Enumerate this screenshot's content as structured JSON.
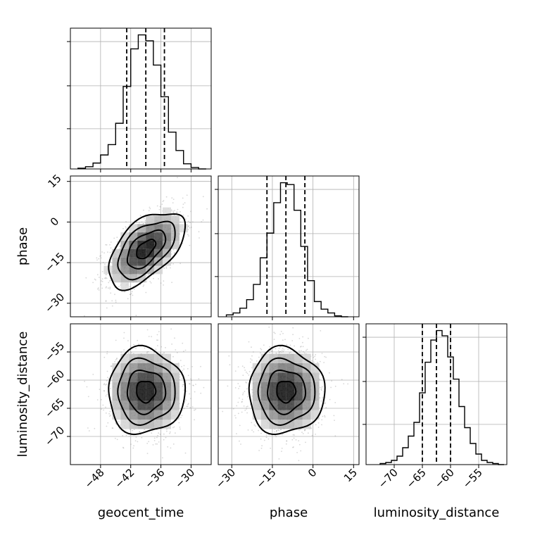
{
  "chart_data": {
    "type": "corner",
    "parameters": [
      "geocent_time",
      "phase",
      "luminosity_distance"
    ],
    "grid": true,
    "ranges": {
      "geocent_time": [
        -54,
        -26
      ],
      "phase": [
        -35,
        17
      ],
      "luminosity_distance": [
        -75,
        -50
      ]
    },
    "ticks": {
      "geocent_time": [
        "−48",
        "−42",
        "−36",
        "−30"
      ],
      "phase": [
        "−30",
        "−15",
        "0",
        "15"
      ],
      "luminosity_distance": [
        "−70",
        "−65",
        "−60",
        "−55"
      ]
    },
    "tick_values": {
      "geocent_time": [
        -48,
        -42,
        -36,
        -30
      ],
      "phase": [
        -30,
        -15,
        0,
        15
      ],
      "luminosity_distance": [
        -70,
        -65,
        -60,
        -55
      ]
    },
    "quantile_lines": {
      "geocent_time": [
        -42.8,
        -39.0,
        -35.3
      ],
      "phase": [
        -17.0,
        -10.0,
        -3.0
      ],
      "luminosity_distance": [
        -65.0,
        -62.5,
        -60.0
      ]
    },
    "histograms": {
      "geocent_time": {
        "edges": [
          -52.5,
          -51,
          -49.5,
          -48,
          -46.5,
          -45,
          -43.5,
          -42,
          -40.5,
          -39,
          -37.5,
          -36,
          -34.5,
          -33,
          -31.5,
          -30,
          -28.5,
          -27
        ],
        "counts": [
          1,
          3,
          8,
          19,
          33,
          62,
          112,
          163,
          182,
          174,
          141,
          98,
          50,
          25,
          7,
          2,
          0
        ]
      },
      "phase": {
        "edges": [
          -32,
          -29.5,
          -27,
          -24.5,
          -22,
          -19.5,
          -17,
          -14.5,
          -12,
          -9.5,
          -7,
          -4.5,
          -2,
          0.5,
          3,
          5.5,
          8,
          10.5,
          13
        ],
        "counts": [
          2,
          4,
          9,
          18,
          34,
          62,
          88,
          120,
          141,
          139,
          112,
          74,
          38,
          16,
          8,
          4,
          1,
          0
        ]
      },
      "luminosity_distance": {
        "edges": [
          -72.5,
          -71.5,
          -70.5,
          -69.5,
          -68.5,
          -67.5,
          -66.5,
          -65.5,
          -64.5,
          -63.5,
          -62.5,
          -61.5,
          -60.5,
          -59.5,
          -58.5,
          -57.5,
          -56.5,
          -55.5,
          -54.5,
          -53.5,
          -52.5,
          -51.5,
          -50.5
        ],
        "counts": [
          1,
          2,
          4,
          8,
          16,
          27,
          40,
          68,
          97,
          118,
          127,
          122,
          102,
          81,
          55,
          35,
          20,
          10,
          4,
          2,
          1,
          0
        ]
      }
    },
    "pairs": [
      {
        "x": "geocent_time",
        "y": "phase",
        "mean": [
          -39.0,
          -10.0
        ],
        "sd": [
          3.8,
          7.0
        ],
        "corr": 0.55,
        "contour_levels_sigma": [
          0.5,
          1.0,
          1.5,
          2.0
        ]
      },
      {
        "x": "geocent_time",
        "y": "luminosity_distance",
        "mean": [
          -39.0,
          -62.0
        ],
        "sd": [
          3.8,
          3.8
        ],
        "corr": 0.0,
        "contour_levels_sigma": [
          0.5,
          1.0,
          1.5,
          2.0
        ]
      },
      {
        "x": "phase",
        "y": "luminosity_distance",
        "mean": [
          -10.0,
          -62.0
        ],
        "sd": [
          7.0,
          3.8
        ],
        "corr": 0.0,
        "contour_levels_sigma": [
          0.5,
          1.0,
          1.5,
          2.0
        ]
      }
    ],
    "colors": {
      "line": "#000000",
      "grid": "#b0b0b0",
      "points": "#8c8c8c"
    }
  }
}
